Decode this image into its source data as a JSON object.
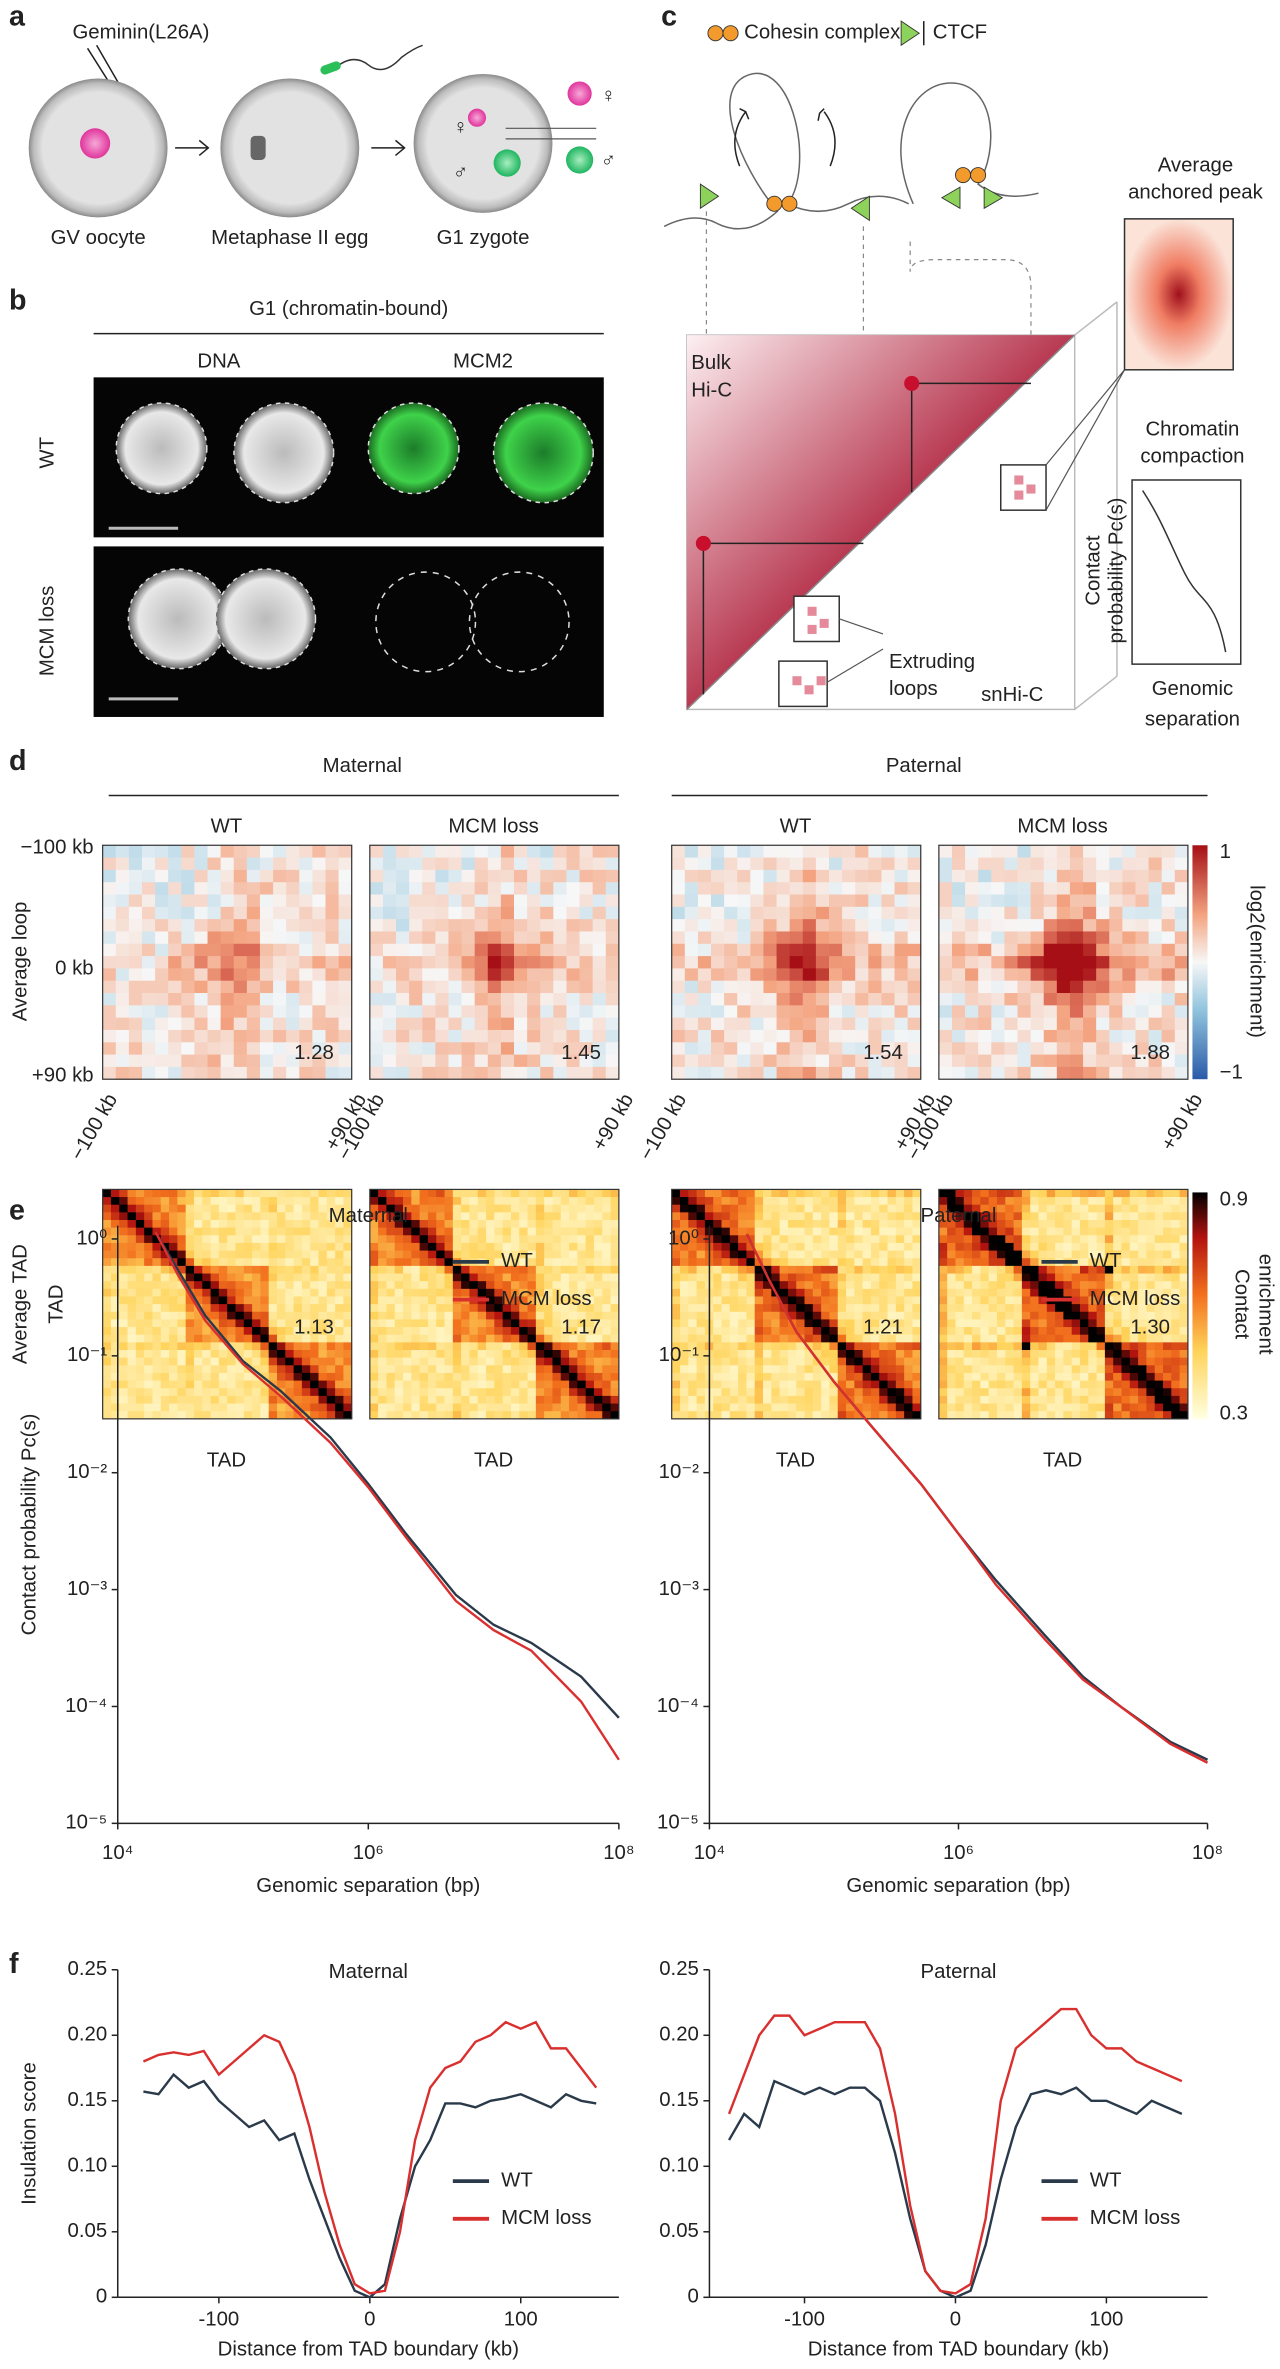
{
  "panel_a": {
    "letter": "a",
    "label": "Geminin(L26A)",
    "stages": [
      "GV oocyte",
      "Metaphase II egg",
      "G1 zygote"
    ],
    "female": "♀",
    "male": "♂"
  },
  "panel_b": {
    "letter": "b",
    "title": "G1 (chromatin-bound)",
    "columns": [
      "DNA",
      "MCM2"
    ],
    "rows": [
      "WT",
      "MCM loss"
    ]
  },
  "panel_c": {
    "letter": "c",
    "legend": [
      "Cohesin complex",
      "CTCF"
    ],
    "bulk": [
      "Bulk",
      "Hi-C"
    ],
    "single": "snHi-C",
    "loops": [
      "Extruding",
      "loops"
    ],
    "inset": [
      "Average",
      "anchored peak"
    ],
    "compaction": [
      "Chromatin",
      "compaction"
    ],
    "ylabel": [
      "Contact",
      "probability Pc(s)"
    ],
    "xlabel": [
      "Genomic",
      "separation"
    ]
  },
  "panel_d": {
    "letter": "d",
    "groups": [
      "Maternal",
      "Paternal"
    ],
    "conditions": [
      "WT",
      "MCM loss",
      "WT",
      "MCM loss"
    ],
    "loop_label": "Average loop",
    "loop_ticks": [
      "−100 kb",
      "0 kb",
      "+90 kb"
    ],
    "loop_xticks": [
      "−100 kb",
      "+90 kb"
    ],
    "loop_scores": [
      "1.28",
      "1.45",
      "1.54",
      "1.88"
    ],
    "loop_cbar": {
      "label": "log2(enrichment)",
      "max": "1",
      "min": "−1"
    },
    "tad_label": "Average TAD",
    "tad_axis": "TAD",
    "tad_scores": [
      "1.13",
      "1.17",
      "1.21",
      "1.30"
    ],
    "tad_cbar": {
      "label": [
        "Contact",
        "enrichment"
      ],
      "max": "0.9",
      "min": "0.3"
    }
  },
  "chart_data": [
    {
      "type": "line",
      "panel": "e",
      "title": "Maternal",
      "xlabel": "Genomic separation (bp)",
      "ylabel": "Contact probability Pc(s)",
      "xscale": "log",
      "yscale": "log",
      "legend": "upper right",
      "x": [
        20000,
        30000,
        50000,
        100000,
        200000,
        500000,
        1000000,
        2000000,
        5000000,
        10000000,
        20000000,
        50000000,
        100000000
      ],
      "series": [
        {
          "name": "WT",
          "color": "#2b3a4a",
          "values": [
            1.15,
            0.55,
            0.22,
            0.09,
            0.05,
            0.02,
            0.008,
            0.003,
            0.0009,
            0.0005,
            0.00035,
            0.00018,
            8e-05
          ]
        },
        {
          "name": "MCM loss",
          "color": "#d9302f",
          "values": [
            1.15,
            0.5,
            0.2,
            0.085,
            0.045,
            0.018,
            0.0075,
            0.0028,
            0.0008,
            0.00045,
            0.0003,
            0.00011,
            3.5e-05
          ]
        }
      ],
      "xlim": [
        10000,
        100000000
      ],
      "xticks": [
        {
          "value": 10000,
          "label": "10⁴"
        },
        {
          "value": 1000000,
          "label": "10⁶"
        },
        {
          "value": 100000000,
          "label": "10⁸"
        }
      ],
      "ylim": [
        1e-05,
        1.3
      ],
      "yticks": [
        {
          "value": 1,
          "label": "10⁰"
        },
        {
          "value": 0.1,
          "label": "10⁻¹"
        },
        {
          "value": 0.01,
          "label": "10⁻²"
        },
        {
          "value": 0.001,
          "label": "10⁻³"
        },
        {
          "value": 0.0001,
          "label": "10⁻⁴"
        },
        {
          "value": 1e-05,
          "label": "10⁻⁵"
        }
      ]
    },
    {
      "type": "line",
      "title": "Paternal",
      "xlabel": "Genomic separation (bp)",
      "xscale": "log",
      "yscale": "log",
      "legend": "upper right",
      "x": [
        20000,
        30000,
        50000,
        100000,
        200000,
        500000,
        1000000,
        2000000,
        5000000,
        10000000,
        20000000,
        50000000,
        100000000
      ],
      "series": [
        {
          "name": "WT",
          "color": "#2b3a4a",
          "values": [
            1.1,
            0.45,
            0.16,
            0.06,
            0.025,
            0.008,
            0.003,
            0.0012,
            0.0004,
            0.00018,
            0.0001,
            5e-05,
            3.5e-05
          ]
        },
        {
          "name": "MCM loss",
          "color": "#d9302f",
          "values": [
            1.1,
            0.45,
            0.16,
            0.06,
            0.025,
            0.008,
            0.003,
            0.0011,
            0.00037,
            0.00017,
            0.0001,
            4.8e-05,
            3.3e-05
          ]
        }
      ],
      "xlim": [
        10000,
        100000000
      ],
      "xticks": [
        {
          "value": 10000,
          "label": "10⁴"
        },
        {
          "value": 1000000,
          "label": "10⁶"
        },
        {
          "value": 100000000,
          "label": "10⁸"
        }
      ],
      "ylim": [
        1e-05,
        1.3
      ],
      "yticks": [
        {
          "value": 1,
          "label": "10⁰"
        },
        {
          "value": 0.1,
          "label": "10⁻¹"
        },
        {
          "value": 0.01,
          "label": "10⁻²"
        },
        {
          "value": 0.001,
          "label": "10⁻³"
        },
        {
          "value": 0.0001,
          "label": "10⁻⁴"
        },
        {
          "value": 1e-05,
          "label": "10⁻⁵"
        }
      ]
    },
    {
      "type": "line",
      "panel": "f",
      "title": "Maternal",
      "xlabel": "Distance from TAD boundary (kb)",
      "ylabel": "Insulation score",
      "legend": "lower right",
      "x": [
        -150,
        -140,
        -130,
        -120,
        -110,
        -100,
        -90,
        -80,
        -70,
        -60,
        -50,
        -40,
        -30,
        -20,
        -10,
        0,
        10,
        20,
        30,
        40,
        50,
        60,
        70,
        80,
        90,
        100,
        110,
        120,
        130,
        140,
        150
      ],
      "series": [
        {
          "name": "WT",
          "color": "#2b3a4a",
          "values": [
            0.157,
            0.155,
            0.17,
            0.16,
            0.165,
            0.15,
            0.14,
            0.13,
            0.135,
            0.12,
            0.125,
            0.09,
            0.06,
            0.03,
            0.005,
            0,
            0.01,
            0.06,
            0.1,
            0.12,
            0.148,
            0.148,
            0.145,
            0.15,
            0.152,
            0.155,
            0.15,
            0.145,
            0.155,
            0.15,
            0.148
          ]
        },
        {
          "name": "MCM loss",
          "color": "#d9302f",
          "values": [
            0.18,
            0.185,
            0.187,
            0.185,
            0.188,
            0.17,
            0.18,
            0.19,
            0.2,
            0.195,
            0.17,
            0.13,
            0.08,
            0.04,
            0.01,
            0.003,
            0.005,
            0.05,
            0.12,
            0.16,
            0.175,
            0.18,
            0.195,
            0.2,
            0.21,
            0.205,
            0.21,
            0.19,
            0.19,
            0.175,
            0.16
          ]
        }
      ],
      "xlim": [
        -167,
        165
      ],
      "xticks": [
        -100,
        0,
        100
      ],
      "ylim": [
        0,
        0.25
      ],
      "yticks": [
        0,
        0.05,
        {
          "value": 0.1,
          "label": "0.10"
        },
        0.15,
        {
          "value": 0.2,
          "label": "0.20"
        },
        0.25
      ]
    },
    {
      "type": "line",
      "title": "Paternal",
      "xlabel": "Distance from TAD boundary (kb)",
      "legend": "lower right",
      "x": [
        -150,
        -140,
        -130,
        -120,
        -110,
        -100,
        -90,
        -80,
        -70,
        -60,
        -50,
        -40,
        -30,
        -20,
        -10,
        0,
        10,
        20,
        30,
        40,
        50,
        60,
        70,
        80,
        90,
        100,
        110,
        120,
        130,
        140,
        150
      ],
      "series": [
        {
          "name": "WT",
          "color": "#2b3a4a",
          "values": [
            0.12,
            0.14,
            0.13,
            0.165,
            0.16,
            0.155,
            0.16,
            0.155,
            0.16,
            0.16,
            0.15,
            0.11,
            0.06,
            0.02,
            0.005,
            0,
            0.005,
            0.04,
            0.09,
            0.13,
            0.155,
            0.158,
            0.155,
            0.16,
            0.15,
            0.15,
            0.145,
            0.14,
            0.15,
            0.145,
            0.14
          ]
        },
        {
          "name": "MCM loss",
          "color": "#d9302f",
          "values": [
            0.14,
            0.17,
            0.2,
            0.215,
            0.215,
            0.2,
            0.205,
            0.21,
            0.21,
            0.21,
            0.19,
            0.14,
            0.07,
            0.02,
            0.005,
            0.003,
            0.01,
            0.06,
            0.15,
            0.19,
            0.2,
            0.21,
            0.22,
            0.22,
            0.2,
            0.19,
            0.19,
            0.18,
            0.175,
            0.17,
            0.165
          ]
        }
      ],
      "xlim": [
        -163,
        167
      ],
      "xticks": [
        -100,
        0,
        100
      ],
      "ylim": [
        0,
        0.25
      ],
      "yticks": [
        0,
        0.05,
        {
          "value": 0.1,
          "label": "0.10"
        },
        0.15,
        {
          "value": 0.2,
          "label": "0.20"
        },
        0.25
      ]
    }
  ]
}
